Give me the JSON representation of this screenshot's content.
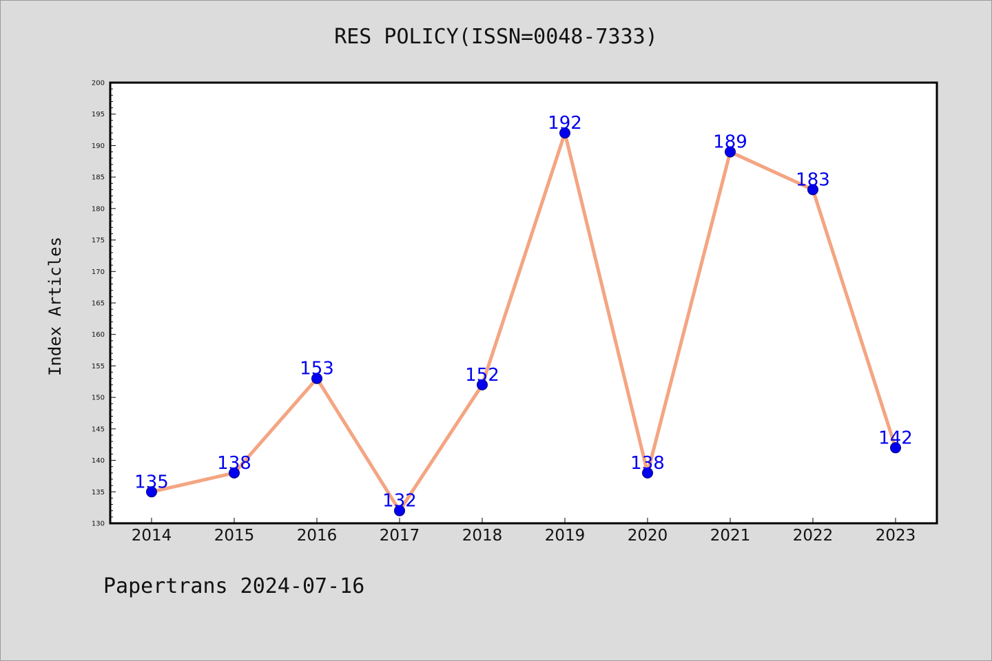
{
  "chart_data": {
    "type": "line",
    "title": "RES POLICY(ISSN=0048-7333)",
    "xlabel": "",
    "ylabel": "Index Articles",
    "categories": [
      "2014",
      "2015",
      "2016",
      "2017",
      "2018",
      "2019",
      "2020",
      "2021",
      "2022",
      "2023"
    ],
    "series": [
      {
        "values": [
          135,
          138,
          153,
          132,
          152,
          192,
          138,
          189,
          183,
          142
        ]
      }
    ],
    "ylim": [
      130,
      200
    ],
    "yticks": [
      130,
      135,
      140,
      145,
      150,
      155,
      160,
      165,
      170,
      175,
      180,
      185,
      190,
      195,
      200
    ],
    "grid": false,
    "line_color": "#f4a582",
    "marker_color": "#0000ee",
    "label_color": "#0000ee"
  },
  "footer": {
    "text": "Papertrans 2024-07-16"
  }
}
